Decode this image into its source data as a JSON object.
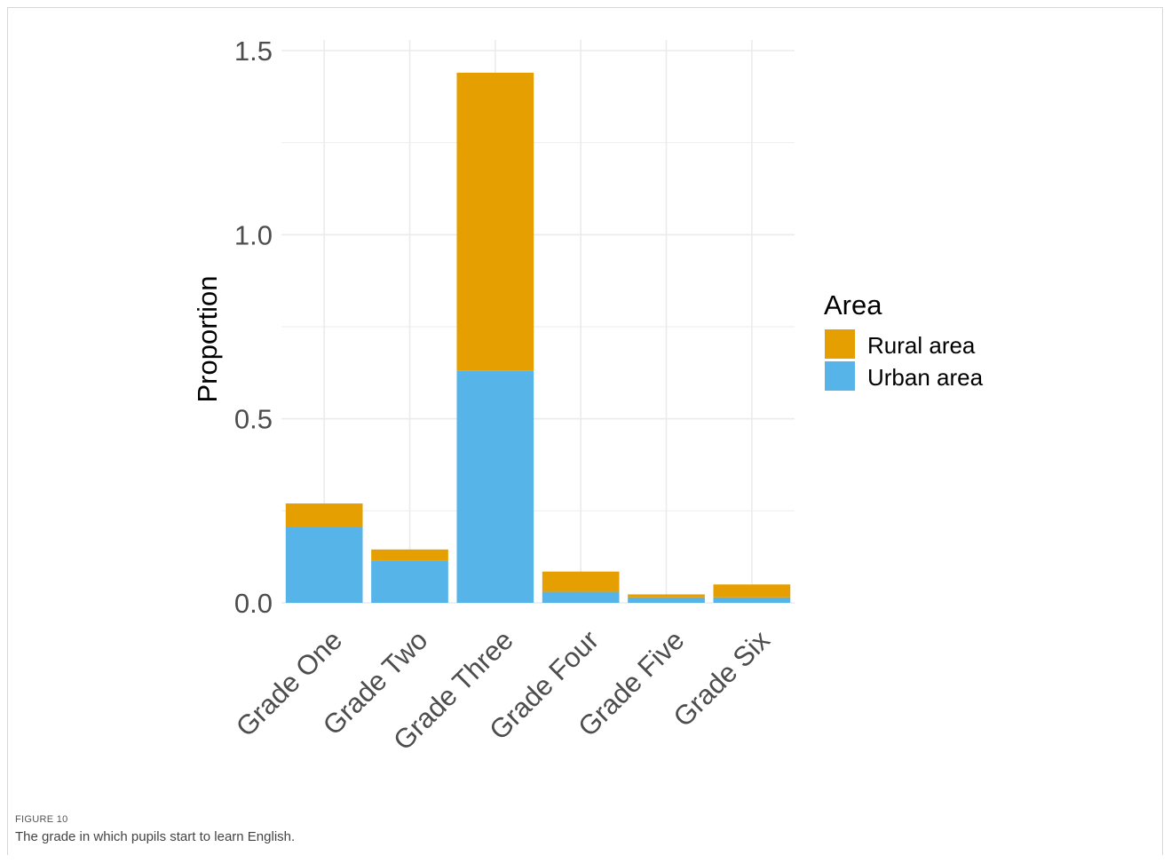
{
  "figure": {
    "label": "FIGURE 10",
    "caption": "The grade in which pupils start to learn English."
  },
  "chart_data": {
    "type": "bar",
    "stacked": true,
    "categories": [
      "Grade One",
      "Grade Two",
      "Grade Three",
      "Grade Four",
      "Grade Five",
      "Grade Six"
    ],
    "series": [
      {
        "name": "Urban area",
        "color": "#56B4E9",
        "values": [
          0.205,
          0.115,
          0.63,
          0.03,
          0.015,
          0.015
        ]
      },
      {
        "name": "Rural area",
        "color": "#E69F00",
        "values": [
          0.065,
          0.03,
          0.81,
          0.055,
          0.008,
          0.035
        ]
      }
    ],
    "ylabel": "Proportion",
    "xlabel": "",
    "ylim": [
      0,
      1.5
    ],
    "yticks": [
      0.0,
      0.5,
      1.0,
      1.5
    ],
    "ytick_labels": [
      "0.0",
      "0.5",
      "1.0",
      "1.5"
    ],
    "legend": {
      "title": "Area",
      "placement": "right",
      "entries": [
        "Rural area",
        "Urban area"
      ],
      "colors": [
        "#E69F00",
        "#56B4E9"
      ]
    },
    "grid": true
  }
}
